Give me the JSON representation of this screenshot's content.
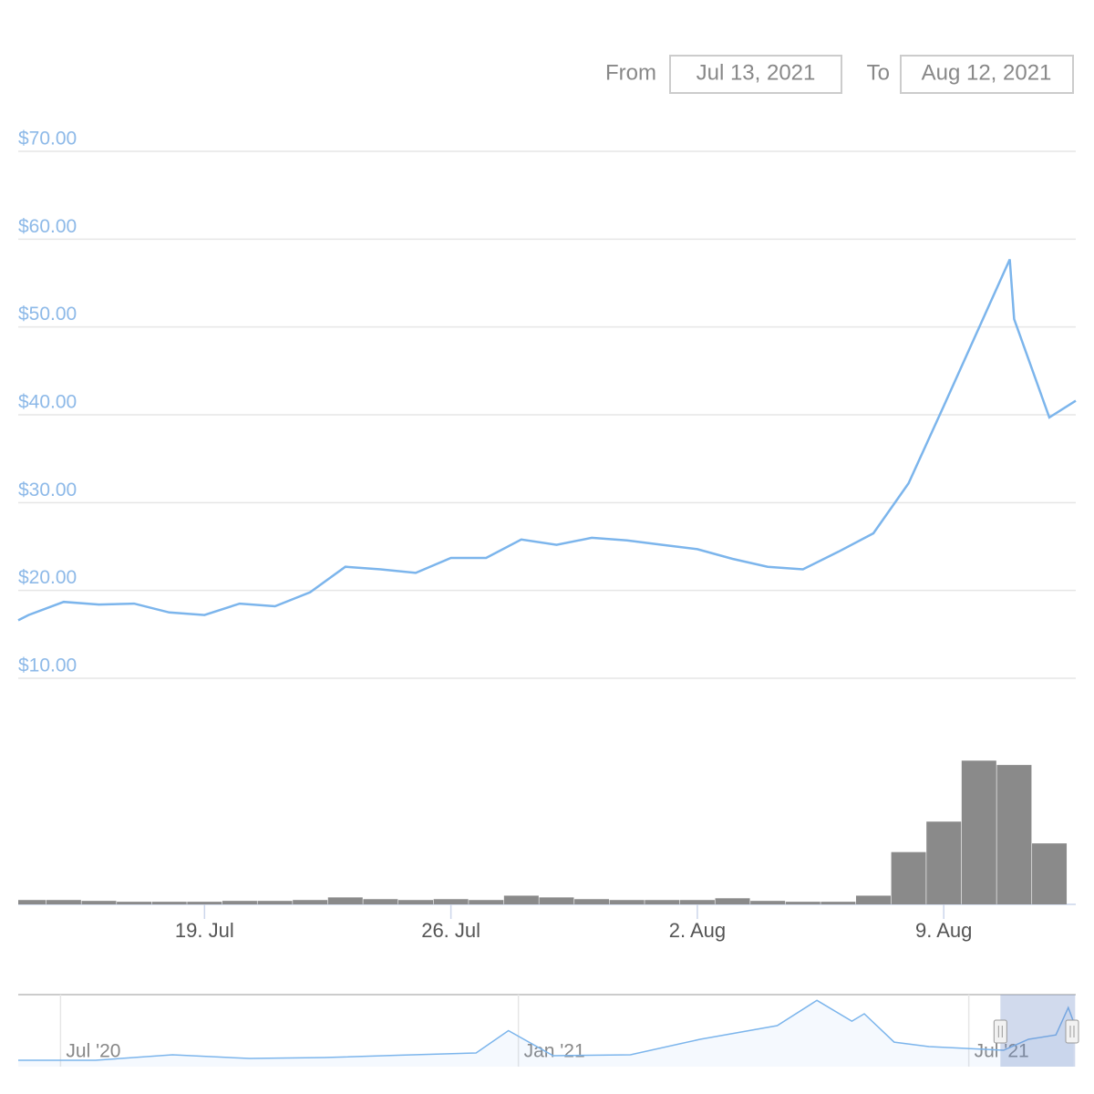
{
  "range_selector": {
    "from_label": "From",
    "from": "Jul 13, 2021",
    "to_label": "To",
    "to": "Aug 12, 2021"
  },
  "chart_data": [
    {
      "type": "line",
      "color": "#7cb5ec",
      "grid": true,
      "x": [
        "2021-07-13T17:00",
        "2021-07-14T00:00",
        "2021-07-15T00:00",
        "2021-07-16T00:00",
        "2021-07-17T00:00",
        "2021-07-18T00:00",
        "2021-07-19T00:00",
        "2021-07-20T00:00",
        "2021-07-21T00:00",
        "2021-07-22T00:00",
        "2021-07-23T00:00",
        "2021-07-24T00:00",
        "2021-07-25T00:00",
        "2021-07-26T00:00",
        "2021-07-27T00:00",
        "2021-07-28T00:00",
        "2021-07-29T00:00",
        "2021-07-30T00:00",
        "2021-07-31T00:00",
        "2021-08-01T00:00",
        "2021-08-02T00:00",
        "2021-08-03T00:00",
        "2021-08-04T00:00",
        "2021-08-05T00:00",
        "2021-08-06T00:00",
        "2021-08-07T00:00",
        "2021-08-08T00:00",
        "2021-08-09T00:00",
        "2021-08-10T00:00",
        "2021-08-10T21:00",
        "2021-08-11T00:00",
        "2021-08-12T00:00",
        "2021-08-12T18:00"
      ],
      "values": [
        16.6,
        17.2,
        18.7,
        18.4,
        18.5,
        17.5,
        17.2,
        18.5,
        18.2,
        19.8,
        22.7,
        22.4,
        22.0,
        23.7,
        23.7,
        25.8,
        25.2,
        26.0,
        25.7,
        25.2,
        24.7,
        23.6,
        22.7,
        22.4,
        24.4,
        26.5,
        32.2,
        41.0,
        49.9,
        57.7,
        50.9,
        39.7,
        41.6
      ],
      "xlim": [
        "2021-07-13T17:00",
        "2021-08-12T18:00"
      ],
      "xticks": [
        {
          "value": "2021-07-19T00:00",
          "label": "19. Jul"
        },
        {
          "value": "2021-07-26T00:00",
          "label": "26. Jul"
        },
        {
          "value": "2021-08-02T00:00",
          "label": "2. Aug"
        },
        {
          "value": "2021-08-09T00:00",
          "label": "9. Aug"
        }
      ],
      "ylim": [
        10,
        70
      ],
      "yticks": [
        {
          "value": 10,
          "label": "$10.00"
        },
        {
          "value": 20,
          "label": "$20.00"
        },
        {
          "value": 30,
          "label": "$30.00"
        },
        {
          "value": 40,
          "label": "$40.00"
        },
        {
          "value": 50,
          "label": "$50.00"
        },
        {
          "value": 60,
          "label": "$60.00"
        },
        {
          "value": 70,
          "label": "$70.00"
        }
      ]
    },
    {
      "type": "bar",
      "color": "#8a8a8a",
      "x": [
        "2021-07-14T00:00",
        "2021-07-15T00:00",
        "2021-07-16T00:00",
        "2021-07-17T00:00",
        "2021-07-18T00:00",
        "2021-07-19T00:00",
        "2021-07-20T00:00",
        "2021-07-21T00:00",
        "2021-07-22T00:00",
        "2021-07-23T00:00",
        "2021-07-24T00:00",
        "2021-07-25T00:00",
        "2021-07-26T00:00",
        "2021-07-27T00:00",
        "2021-07-28T00:00",
        "2021-07-29T00:00",
        "2021-07-30T00:00",
        "2021-07-31T00:00",
        "2021-08-01T00:00",
        "2021-08-02T00:00",
        "2021-08-03T00:00",
        "2021-08-04T00:00",
        "2021-08-05T00:00",
        "2021-08-06T00:00",
        "2021-08-07T00:00",
        "2021-08-08T00:00",
        "2021-08-09T00:00",
        "2021-08-10T00:00",
        "2021-08-11T00:00",
        "2021-08-12T00:00"
      ],
      "values": [
        5,
        5,
        4,
        3,
        3,
        3,
        4,
        4,
        5,
        8,
        6,
        5,
        6,
        5,
        10,
        8,
        6,
        5,
        5,
        5,
        7,
        4,
        3,
        3,
        10,
        60,
        95,
        165,
        160,
        70
      ],
      "xlim": [
        "2021-07-13T17:00",
        "2021-08-12T18:00"
      ],
      "ylim": [
        0,
        180
      ]
    },
    {
      "type": "area",
      "color": "#7cb5ec",
      "x": [
        "2020-06-14T00:00",
        "2020-07-15T00:00",
        "2020-08-15T00:00",
        "2020-09-15T00:00",
        "2020-10-15T00:00",
        "2020-11-15T00:00",
        "2020-12-15T00:00",
        "2020-12-28T00:00",
        "2021-01-15T00:00",
        "2021-02-15T00:00",
        "2021-03-15T00:00",
        "2021-04-15T00:00",
        "2021-05-01T00:00",
        "2021-05-15T00:00",
        "2021-05-20T00:00",
        "2021-06-01T00:00",
        "2021-06-15T00:00",
        "2021-07-15T00:00",
        "2021-07-25T00:00",
        "2021-08-05T00:00",
        "2021-08-10T00:00",
        "2021-08-12T00:00"
      ],
      "values": [
        4.4,
        4.4,
        8.2,
        5.7,
        6.3,
        8,
        9.5,
        25,
        7.6,
        8.2,
        19,
        28.5,
        46,
        31.6,
        36.7,
        17,
        13.9,
        11.4,
        19,
        22,
        41,
        31.6
      ],
      "xlim": [
        "2020-06-14T00:00",
        "2021-08-13T00:00"
      ],
      "xticks": [
        {
          "value": "2020-07-01T00:00",
          "label": "Jul '20"
        },
        {
          "value": "2021-01-01T00:00",
          "label": "Jan '21"
        },
        {
          "value": "2021-07-01T00:00",
          "label": "Jul '21"
        }
      ],
      "ylim": [
        0,
        50
      ]
    }
  ]
}
